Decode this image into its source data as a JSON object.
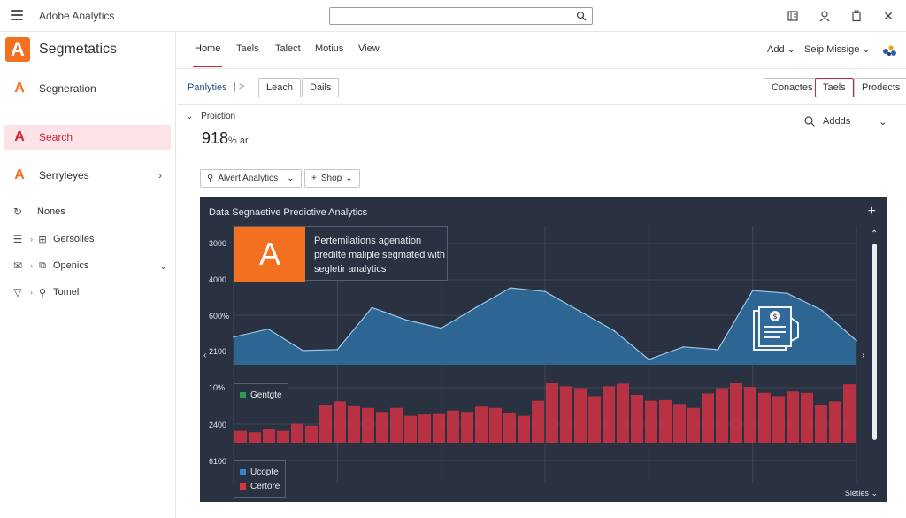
{
  "app": {
    "title": "Adobe Analytics"
  },
  "brand": {
    "logo_letter": "A",
    "name": "Segmetatics",
    "color": "#f37021"
  },
  "sidebar": {
    "items": [
      {
        "glyph": "A",
        "label": "Segneration"
      },
      {
        "glyph": "A",
        "label": "Search"
      },
      {
        "glyph": "A",
        "label": "Serryleyes"
      }
    ],
    "subitems": [
      {
        "label": "Nones"
      },
      {
        "label": "Gersolies"
      },
      {
        "label": "Openics"
      },
      {
        "label": "Tomel"
      }
    ]
  },
  "tabs": [
    {
      "label": "Home"
    },
    {
      "label": "Taels"
    },
    {
      "label": "Talect"
    },
    {
      "label": "Motius"
    },
    {
      "label": "View"
    }
  ],
  "right_menu": {
    "add": "Add",
    "message": "Seip Missige"
  },
  "filter": {
    "label": "Panlyties",
    "sep": "|  >",
    "left_pills": [
      "Leach",
      "Dails"
    ],
    "right_pills": [
      "Conactes",
      "Taels",
      "Prodects"
    ]
  },
  "section": {
    "title": "Proiction",
    "metric_value": "918",
    "metric_unit": "% ar",
    "adds_label": "Addds"
  },
  "dropdowns": {
    "first": "Alvert Analytics",
    "second": "Shop"
  },
  "chart_data": {
    "type": "area",
    "title": "Data Segnaetive Predictive Analytics",
    "y_tick_labels": [
      "3000",
      "4000",
      "600%",
      "2100",
      "10%",
      "2400",
      "6100"
    ],
    "callout_logo": "A",
    "callout_text": "Pertemilations agenation predilte maliple segmated with segletir analytics",
    "series": [
      {
        "name": "Area",
        "color": "#2f6a9a",
        "x": [
          0,
          1,
          2,
          3,
          4,
          5,
          6,
          7,
          8,
          9,
          10,
          11,
          12,
          13,
          14,
          15,
          16,
          17,
          18
        ],
        "values": [
          0.31,
          0.4,
          0.16,
          0.17,
          0.64,
          0.5,
          0.41,
          0.64,
          0.86,
          0.82,
          0.6,
          0.38,
          0.06,
          0.2,
          0.17,
          0.83,
          0.8,
          0.61,
          0.27
        ]
      },
      {
        "name": "Bars",
        "color": "#b83244",
        "values": [
          0.18,
          0.16,
          0.21,
          0.18,
          0.29,
          0.26,
          0.58,
          0.63,
          0.57,
          0.53,
          0.47,
          0.53,
          0.41,
          0.43,
          0.45,
          0.49,
          0.47,
          0.55,
          0.53,
          0.46,
          0.41,
          0.64,
          0.91,
          0.86,
          0.83,
          0.71,
          0.86,
          0.9,
          0.73,
          0.64,
          0.65,
          0.59,
          0.53,
          0.75,
          0.83,
          0.91,
          0.85,
          0.76,
          0.71,
          0.78,
          0.76,
          0.58,
          0.63,
          0.89
        ]
      }
    ],
    "legends": {
      "top": {
        "label": "Gentgte",
        "color": "#2e9a53"
      },
      "bottom": [
        {
          "label": "Ucopte",
          "color": "#3a84c4"
        },
        {
          "label": "Certore",
          "color": "#d9343f"
        }
      ]
    },
    "corner_label": "Sletles"
  }
}
